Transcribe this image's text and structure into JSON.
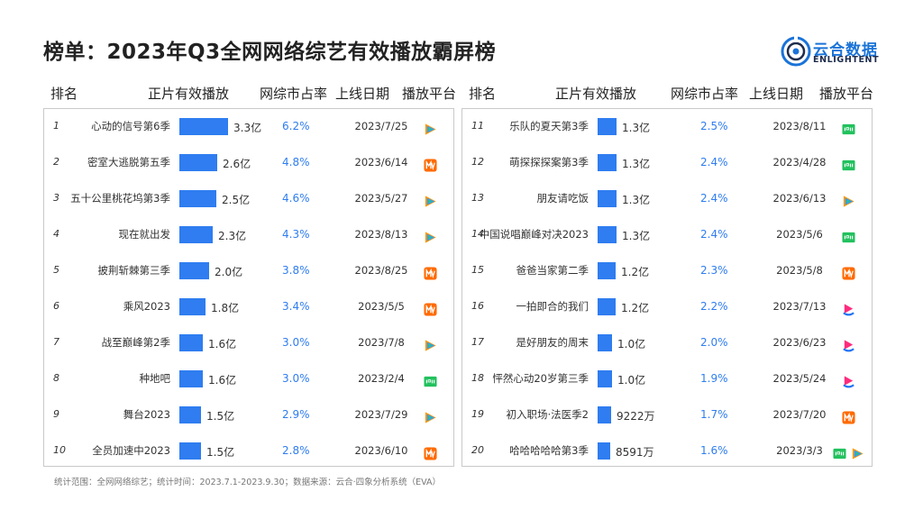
{
  "title": "榜单：2023年Q3全网网络综艺有效播放霸屏榜",
  "logo": {
    "cn": "云合数据",
    "en": "ENLIGHTENT"
  },
  "headers": {
    "left": [
      "排名",
      "正片有效播放",
      "网综市占率",
      "上线日期",
      "播放平台"
    ],
    "right": [
      "排名",
      "正片有效播放",
      "网综市占率",
      "上线日期",
      "播放平台"
    ]
  },
  "platform_icons": {
    "tencent": "tencent-video-icon",
    "mango": "mango-tv-icon",
    "iqiyi": "iqiyi-icon",
    "youku": "youku-icon"
  },
  "colors": {
    "bar": "#2f7df0",
    "share": "#2f7df0",
    "tencent_orange": "#ff9900",
    "tencent_blue": "#2f9bff",
    "tencent_green": "#2dc76d",
    "mango": "#ff6a00",
    "iqiyi": "#22c15e",
    "youku_pink": "#ff2b7e",
    "youku_blue": "#1f72f5"
  },
  "chart_data": {
    "type": "bar",
    "unit_note": "正片有效播放（亿）",
    "categories": [
      "心动的信号第6季",
      "密室大逃脱第五季",
      "五十公里桃花坞第3季",
      "现在就出发",
      "披荆斩棘第三季",
      "乘风2023",
      "战至巅峰第2季",
      "种地吧",
      "舞台2023",
      "全员加速中2023",
      "乐队的夏天第3季",
      "萌探探探案第3季",
      "朋友请吃饭",
      "中国说唱巅峰对决2023",
      "爸爸当家第二季",
      "一拍即合的我们",
      "是好朋友的周末",
      "怦然心动20岁第三季",
      "初入职场·法医季2",
      "哈哈哈哈哈第3季"
    ],
    "values": [
      3.3,
      2.6,
      2.5,
      2.3,
      2.0,
      1.8,
      1.6,
      1.6,
      1.5,
      1.5,
      1.3,
      1.3,
      1.3,
      1.3,
      1.2,
      1.2,
      1.0,
      1.0,
      0.9222,
      0.8591
    ],
    "rows": [
      {
        "rank": "1",
        "name": "心动的信号第6季",
        "value": 3.3,
        "label": "3.3亿",
        "share": "6.2%",
        "date": "2023/7/25",
        "platforms": [
          "tencent"
        ]
      },
      {
        "rank": "2",
        "name": "密室大逃脱第五季",
        "value": 2.6,
        "label": "2.6亿",
        "share": "4.8%",
        "date": "2023/6/14",
        "platforms": [
          "mango"
        ]
      },
      {
        "rank": "3",
        "name": "五十公里桃花坞第3季",
        "value": 2.5,
        "label": "2.5亿",
        "share": "4.6%",
        "date": "2023/5/27",
        "platforms": [
          "tencent"
        ]
      },
      {
        "rank": "4",
        "name": "现在就出发",
        "value": 2.3,
        "label": "2.3亿",
        "share": "4.3%",
        "date": "2023/8/13",
        "platforms": [
          "tencent"
        ]
      },
      {
        "rank": "5",
        "name": "披荆斩棘第三季",
        "value": 2.0,
        "label": "2.0亿",
        "share": "3.8%",
        "date": "2023/8/25",
        "platforms": [
          "mango"
        ]
      },
      {
        "rank": "6",
        "name": "乘风2023",
        "value": 1.8,
        "label": "1.8亿",
        "share": "3.4%",
        "date": "2023/5/5",
        "platforms": [
          "mango"
        ]
      },
      {
        "rank": "7",
        "name": "战至巅峰第2季",
        "value": 1.6,
        "label": "1.6亿",
        "share": "3.0%",
        "date": "2023/7/8",
        "platforms": [
          "tencent"
        ]
      },
      {
        "rank": "8",
        "name": "种地吧",
        "value": 1.6,
        "label": "1.6亿",
        "share": "3.0%",
        "date": "2023/2/4",
        "platforms": [
          "iqiyi"
        ]
      },
      {
        "rank": "9",
        "name": "舞台2023",
        "value": 1.5,
        "label": "1.5亿",
        "share": "2.9%",
        "date": "2023/7/29",
        "platforms": [
          "tencent"
        ]
      },
      {
        "rank": "10",
        "name": "全员加速中2023",
        "value": 1.5,
        "label": "1.5亿",
        "share": "2.8%",
        "date": "2023/6/10",
        "platforms": [
          "mango"
        ]
      },
      {
        "rank": "11",
        "name": "乐队的夏天第3季",
        "value": 1.3,
        "label": "1.3亿",
        "share": "2.5%",
        "date": "2023/8/11",
        "platforms": [
          "iqiyi"
        ]
      },
      {
        "rank": "12",
        "name": "萌探探探案第3季",
        "value": 1.3,
        "label": "1.3亿",
        "share": "2.4%",
        "date": "2023/4/28",
        "platforms": [
          "iqiyi"
        ]
      },
      {
        "rank": "13",
        "name": "朋友请吃饭",
        "value": 1.3,
        "label": "1.3亿",
        "share": "2.4%",
        "date": "2023/6/13",
        "platforms": [
          "tencent"
        ]
      },
      {
        "rank": "14",
        "name": "中国说唱巅峰对决2023",
        "value": 1.3,
        "label": "1.3亿",
        "share": "2.4%",
        "date": "2023/5/6",
        "platforms": [
          "iqiyi"
        ]
      },
      {
        "rank": "15",
        "name": "爸爸当家第二季",
        "value": 1.2,
        "label": "1.2亿",
        "share": "2.3%",
        "date": "2023/5/8",
        "platforms": [
          "mango"
        ]
      },
      {
        "rank": "16",
        "name": "一拍即合的我们",
        "value": 1.2,
        "label": "1.2亿",
        "share": "2.2%",
        "date": "2023/7/13",
        "platforms": [
          "youku"
        ]
      },
      {
        "rank": "17",
        "name": "是好朋友的周末",
        "value": 1.0,
        "label": "1.0亿",
        "share": "2.0%",
        "date": "2023/6/23",
        "platforms": [
          "youku"
        ]
      },
      {
        "rank": "18",
        "name": "怦然心动20岁第三季",
        "value": 1.0,
        "label": "1.0亿",
        "share": "1.9%",
        "date": "2023/5/24",
        "platforms": [
          "youku"
        ]
      },
      {
        "rank": "19",
        "name": "初入职场·法医季2",
        "value": 0.9222,
        "label": "9222万",
        "share": "1.7%",
        "date": "2023/7/20",
        "platforms": [
          "mango"
        ]
      },
      {
        "rank": "20",
        "name": "哈哈哈哈哈第3季",
        "value": 0.8591,
        "label": "8591万",
        "share": "1.6%",
        "date": "2023/3/3",
        "platforms": [
          "iqiyi",
          "tencent"
        ]
      }
    ]
  },
  "footer": "统计范围：全网网络综艺；统计时间：2023.7.1-2023.9.30；数据来源：云合·四象分析系统（EVA）"
}
